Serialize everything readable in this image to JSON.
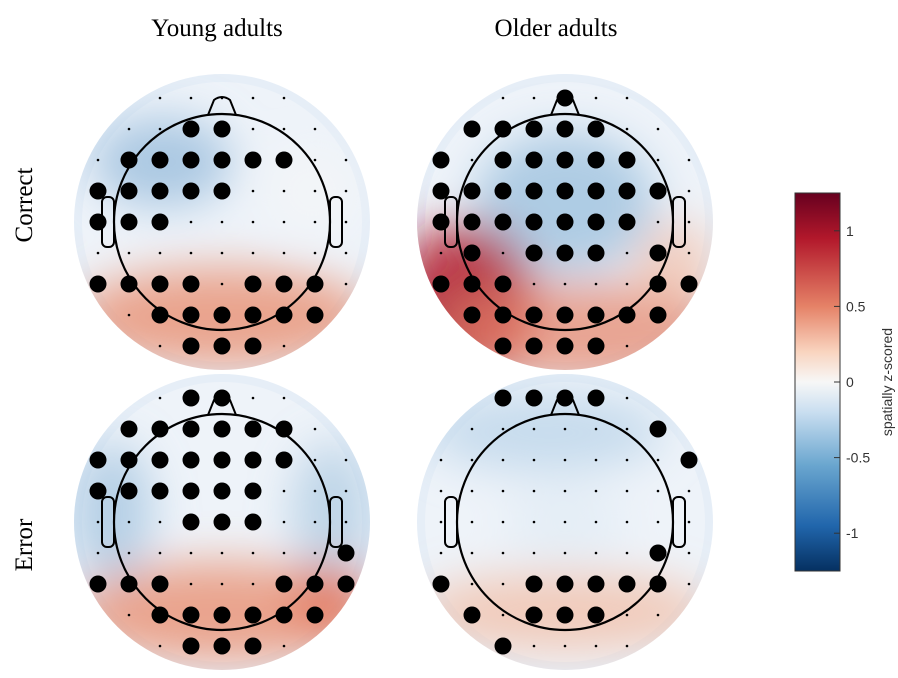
{
  "columns": [
    "Young adults",
    "Older adults"
  ],
  "rows": [
    "Correct",
    "Error"
  ],
  "colorbar": {
    "label": "spatially z-scored",
    "lim": [
      -1.25,
      1.25
    ],
    "ticks": [
      -1,
      -0.5,
      0,
      0.5,
      1
    ]
  }
}
